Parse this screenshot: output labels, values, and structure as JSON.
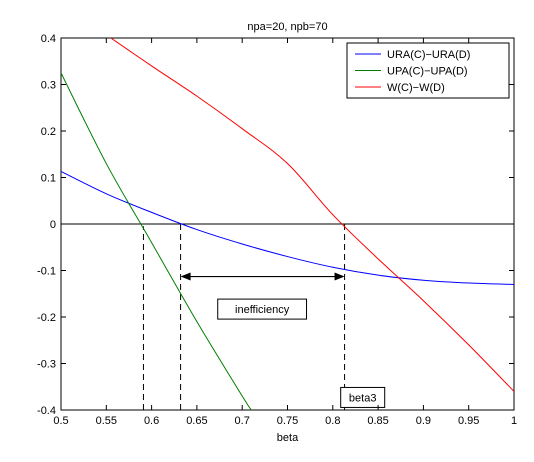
{
  "chart_data": {
    "type": "line",
    "title": "npa=20, npb=70",
    "xlabel": "beta",
    "ylabel": "",
    "xlim": [
      0.5,
      1.0
    ],
    "ylim": [
      -0.4,
      0.4
    ],
    "xticks": [
      0.5,
      0.55,
      0.6,
      0.65,
      0.7,
      0.75,
      0.8,
      0.85,
      0.9,
      0.95,
      1.0
    ],
    "xtick_labels": [
      "0.5",
      "0.55",
      "0.6",
      "0.65",
      "0.7",
      "0.75",
      "0.8",
      "0.85",
      "0.9",
      "0.95",
      "1"
    ],
    "yticks": [
      -0.4,
      -0.3,
      -0.2,
      -0.1,
      0,
      0.1,
      0.2,
      0.3,
      0.4
    ],
    "ytick_labels": [
      "-0.4",
      "-0.3",
      "-0.2",
      "-0.1",
      "0",
      "0.1",
      "0.2",
      "0.3",
      "0.4"
    ],
    "grid": false,
    "legend_position": "top-right",
    "series": [
      {
        "name": "URA(C)−URA(D)",
        "color": "#0000ff",
        "x": [
          0.5,
          0.55,
          0.6,
          0.65,
          0.7,
          0.75,
          0.8,
          0.85,
          0.9,
          0.95,
          1.0
        ],
        "y": [
          0.113,
          0.065,
          0.025,
          -0.012,
          -0.043,
          -0.07,
          -0.093,
          -0.11,
          -0.121,
          -0.127,
          -0.13
        ]
      },
      {
        "name": "UPA(C)−UPA(D)",
        "color": "#008000",
        "x": [
          0.5,
          0.55,
          0.6,
          0.65,
          0.7,
          0.71
        ],
        "y": [
          0.325,
          0.13,
          -0.04,
          -0.21,
          -0.37,
          -0.4
        ]
      },
      {
        "name": "W(C)−W(D)",
        "color": "#ff0000",
        "x": [
          0.555,
          0.6,
          0.65,
          0.7,
          0.75,
          0.8,
          0.85,
          0.9,
          0.95,
          1.0
        ],
        "y": [
          0.4,
          0.34,
          0.275,
          0.205,
          0.13,
          0.02,
          -0.075,
          -0.165,
          -0.26,
          -0.36
        ]
      }
    ],
    "reference_lines": [
      {
        "kind": "horizontal",
        "y": 0,
        "color": "#000000",
        "style": "solid"
      },
      {
        "kind": "vertical",
        "x": 0.591,
        "y_from": -0.4,
        "y_to": -0.005,
        "color": "#000000",
        "style": "dashed"
      },
      {
        "kind": "vertical",
        "x": 0.632,
        "y_from": -0.4,
        "y_to": 0.0,
        "color": "#000000",
        "style": "dashed"
      },
      {
        "kind": "vertical",
        "x": 0.813,
        "y_from": -0.4,
        "y_to": 0.0,
        "color": "#000000",
        "style": "dashed"
      }
    ],
    "arrow": {
      "x_from": 0.632,
      "x_to": 0.813,
      "y": -0.113,
      "color": "#000000",
      "style": "double"
    },
    "annotations": [
      {
        "text": "inefficiency",
        "x": 0.722,
        "y": -0.183
      },
      {
        "text": "beta3",
        "x": 0.833,
        "y": -0.373
      }
    ]
  }
}
